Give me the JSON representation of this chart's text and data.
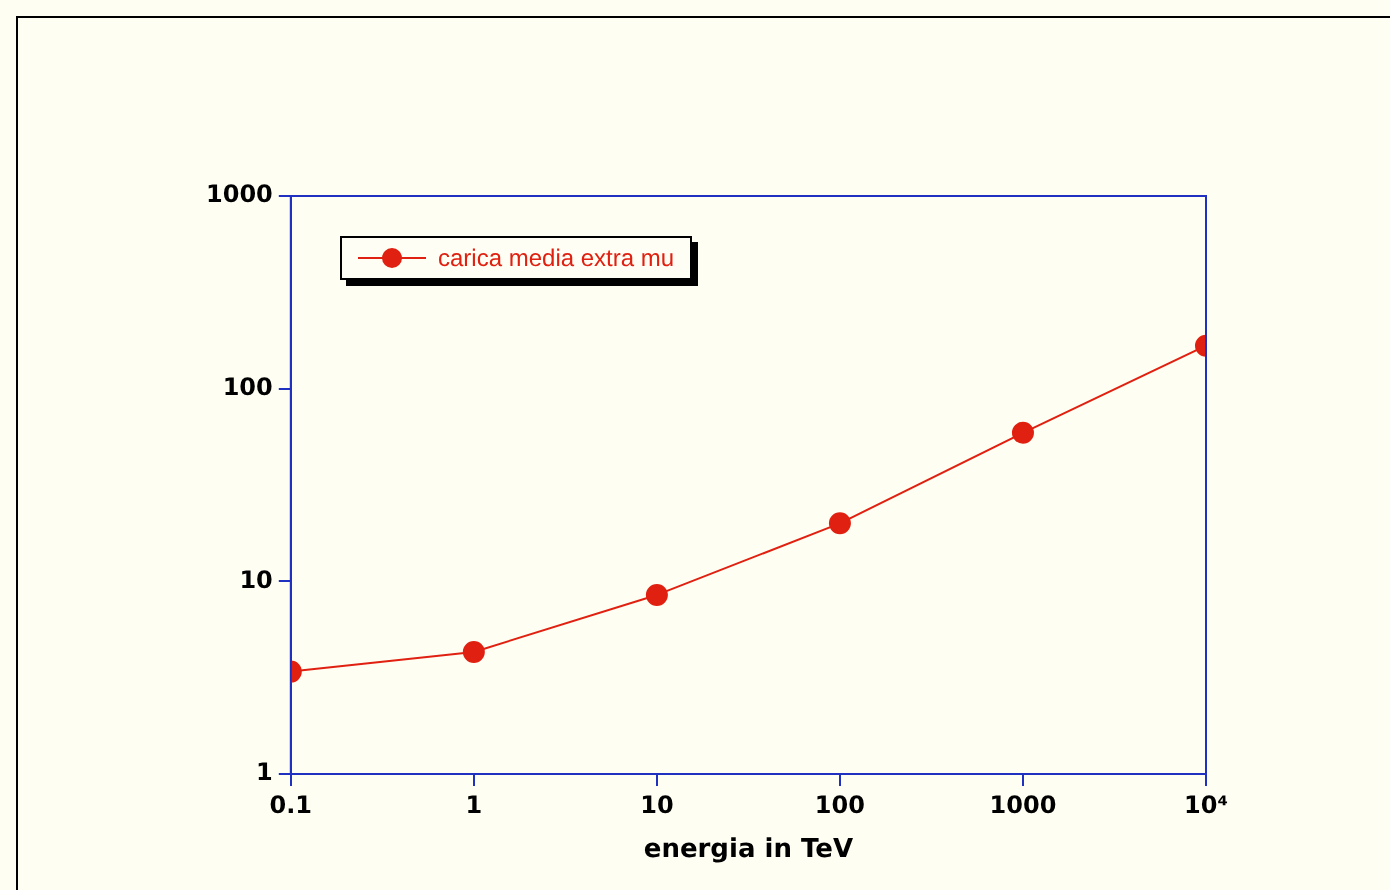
{
  "chart_data": {
    "type": "line",
    "xlabel": "energia in TeV",
    "x": [
      0.1,
      1,
      10,
      100,
      1000,
      10000
    ],
    "series": [
      {
        "name": "carica media extra mu",
        "color": "#e02010",
        "values": [
          3.4,
          4.3,
          8.5,
          20,
          59,
          167
        ]
      }
    ],
    "log": "xy",
    "xlim": [
      0.1,
      10000
    ],
    "ylim": [
      1,
      1000
    ],
    "xticks": [
      0.1,
      1,
      10,
      100,
      1000,
      {
        "value": 10000,
        "label": "10⁴"
      }
    ],
    "yticks": [
      1,
      10,
      100,
      1000
    ],
    "grid": false,
    "legend": "top left",
    "marker": "circle",
    "line_style": "solid"
  }
}
